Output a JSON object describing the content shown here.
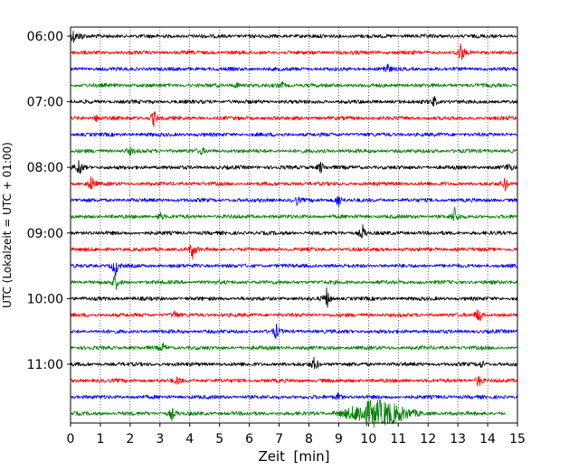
{
  "chart_data": {
    "type": "line",
    "title": "",
    "xlabel": "Zeit  [min]",
    "ylabel": "UTC (Lokalzeit = UTC + 01:00)",
    "xlim": [
      0,
      15
    ],
    "x_ticks": [
      0,
      1,
      2,
      3,
      4,
      5,
      6,
      7,
      8,
      9,
      10,
      11,
      12,
      13,
      14,
      15
    ],
    "grid": "vertical dotted at each minute",
    "y_tick_labels": [
      "06:00",
      "07:00",
      "08:00",
      "09:00",
      "10:00",
      "11:00"
    ],
    "trace_interval_minutes": 15,
    "series_colors": [
      "#000000",
      "#ff0000",
      "#0000ff",
      "#008000"
    ],
    "traces": [
      {
        "start": "06:00",
        "color": "#000000",
        "events": [
          [
            0.1,
            1.0
          ],
          [
            0.35,
            0.5
          ]
        ]
      },
      {
        "start": "06:15",
        "color": "#ff0000",
        "events": [
          [
            13.1,
            1.5
          ]
        ]
      },
      {
        "start": "06:30",
        "color": "#0000ff",
        "events": [
          [
            10.6,
            1.0
          ]
        ]
      },
      {
        "start": "06:45",
        "color": "#008000",
        "events": [
          [
            5.6,
            0.45
          ],
          [
            7.1,
            0.4
          ]
        ]
      },
      {
        "start": "07:00",
        "color": "#000000",
        "events": [
          [
            12.2,
            0.8
          ]
        ]
      },
      {
        "start": "07:15",
        "color": "#ff0000",
        "events": [
          [
            2.8,
            1.2
          ],
          [
            0.9,
            0.55
          ]
        ]
      },
      {
        "start": "07:30",
        "color": "#0000ff",
        "events": []
      },
      {
        "start": "07:45",
        "color": "#008000",
        "events": [
          [
            2.0,
            0.5
          ],
          [
            4.4,
            0.45
          ]
        ]
      },
      {
        "start": "08:00",
        "color": "#000000",
        "events": [
          [
            0.3,
            1.4
          ],
          [
            8.4,
            0.9
          ],
          [
            14.7,
            0.6
          ]
        ]
      },
      {
        "start": "08:15",
        "color": "#ff0000",
        "events": [
          [
            0.7,
            1.2
          ],
          [
            14.6,
            1.0
          ]
        ]
      },
      {
        "start": "08:30",
        "color": "#0000ff",
        "events": [
          [
            9.0,
            1.1
          ],
          [
            7.6,
            0.6
          ]
        ]
      },
      {
        "start": "08:45",
        "color": "#008000",
        "events": [
          [
            3.0,
            0.6
          ],
          [
            12.9,
            1.3
          ]
        ]
      },
      {
        "start": "09:00",
        "color": "#000000",
        "events": [
          [
            9.8,
            1.1
          ]
        ]
      },
      {
        "start": "09:15",
        "color": "#ff0000",
        "events": [
          [
            4.1,
            1.3
          ]
        ]
      },
      {
        "start": "09:30",
        "color": "#0000ff",
        "events": [
          [
            1.5,
            1.5
          ]
        ]
      },
      {
        "start": "09:45",
        "color": "#008000",
        "events": [
          [
            1.5,
            1.2
          ]
        ]
      },
      {
        "start": "10:00",
        "color": "#000000",
        "events": [
          [
            8.6,
            1.5
          ]
        ]
      },
      {
        "start": "10:15",
        "color": "#ff0000",
        "events": [
          [
            13.7,
            1.3
          ],
          [
            3.5,
            0.6
          ]
        ]
      },
      {
        "start": "10:30",
        "color": "#0000ff",
        "events": [
          [
            6.9,
            1.0
          ]
        ]
      },
      {
        "start": "10:45",
        "color": "#008000",
        "events": [
          [
            3.1,
            0.6
          ]
        ]
      },
      {
        "start": "11:00",
        "color": "#000000",
        "events": [
          [
            8.2,
            1.2
          ],
          [
            13.8,
            0.5
          ]
        ]
      },
      {
        "start": "11:15",
        "color": "#ff0000",
        "events": [
          [
            13.7,
            1.0
          ],
          [
            3.6,
            0.6
          ]
        ]
      },
      {
        "start": "11:30",
        "color": "#0000ff",
        "events": [
          [
            9.0,
            0.6
          ]
        ]
      },
      {
        "start": "11:45",
        "color": "#008000",
        "events": [
          [
            3.4,
            0.9
          ]
        ],
        "burst": {
          "from_min": 8.8,
          "to_min": 12.4,
          "peak_min": 10.3,
          "end_min": 14.6
        }
      }
    ]
  }
}
